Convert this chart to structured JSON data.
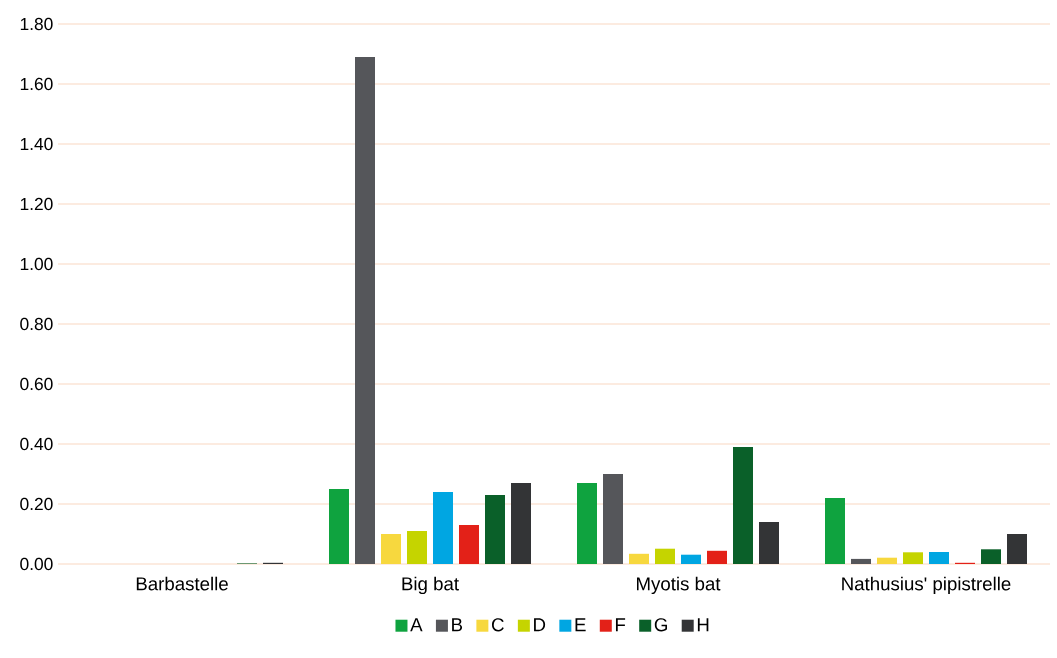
{
  "chart_data": {
    "type": "bar",
    "categories": [
      "Barbastelle",
      "Big bat",
      "Myotis bat",
      "Nathusius' pipistrelle"
    ],
    "series": [
      {
        "name": "A",
        "color": "#0fa33f",
        "values": [
          0,
          0.25,
          0.27,
          0.22
        ]
      },
      {
        "name": "B",
        "color": "#55565a",
        "values": [
          0,
          1.69,
          0.3,
          0.017
        ]
      },
      {
        "name": "C",
        "color": "#f7d83e",
        "values": [
          0,
          0.1,
          0.034,
          0.021
        ]
      },
      {
        "name": "D",
        "color": "#c5d400",
        "values": [
          0,
          0.11,
          0.051,
          0.039
        ]
      },
      {
        "name": "E",
        "color": "#00a6e2",
        "values": [
          0,
          0.24,
          0.031,
          0.04
        ]
      },
      {
        "name": "F",
        "color": "#e32118",
        "values": [
          0,
          0.13,
          0.044,
          0.004
        ]
      },
      {
        "name": "G",
        "color": "#0a6029",
        "values": [
          0.002,
          0.23,
          0.39,
          0.049
        ]
      },
      {
        "name": "H",
        "color": "#333436",
        "values": [
          0.004,
          0.27,
          0.14,
          0.1
        ]
      }
    ],
    "ylim": [
      0,
      1.8
    ],
    "yticks": [
      {
        "value": 0,
        "label": "0.00"
      },
      {
        "value": 0.2,
        "label": "0.20"
      },
      {
        "value": 0.4,
        "label": "0.40"
      },
      {
        "value": 0.6,
        "label": "0.60"
      },
      {
        "value": 0.8,
        "label": "0.80"
      },
      {
        "value": 1.0,
        "label": "1.00"
      },
      {
        "value": 1.2,
        "label": "1.20"
      },
      {
        "value": 1.4,
        "label": "1.40"
      },
      {
        "value": 1.6,
        "label": "1.60"
      },
      {
        "value": 1.8,
        "label": "1.80"
      }
    ],
    "grid": "y",
    "legend": "bottom"
  }
}
